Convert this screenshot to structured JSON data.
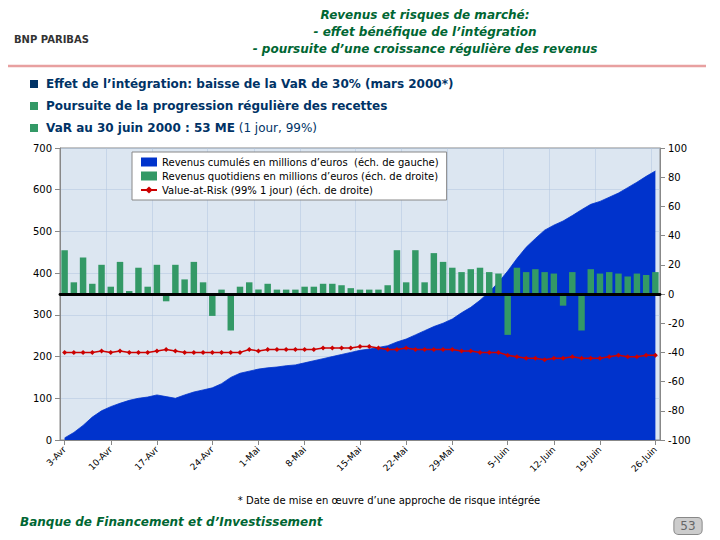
{
  "chart_data": {
    "type": "combo",
    "title": "Revenus et risques de marché:\n- effet bénéfique de l’intégration\n- poursuite d’une croissance régulière des revenus",
    "annotations": [
      "BNP PARIBAS",
      "Effet de l’intégration: baisse de la VaR de 30% (mars 2000*)",
      "Poursuite de la progression régulière des recettes",
      "VaR au 30 juin 2000 : 53 ME",
      "(1 jour, 99%)",
      "* Date de mise en œuvre d’une approche de risque intégrée",
      "Banque de Financement et d’Investissement",
      "53"
    ],
    "categories": [
      "3-Avr",
      null,
      null,
      null,
      null,
      "10-Avr",
      null,
      null,
      null,
      null,
      "17-Avr",
      null,
      null,
      null,
      null,
      null,
      "24-Avr",
      null,
      null,
      null,
      null,
      "1-Mai",
      null,
      null,
      null,
      null,
      "8-Mai",
      null,
      null,
      null,
      null,
      null,
      "15-Mai",
      null,
      null,
      null,
      null,
      "22-Mai",
      null,
      null,
      null,
      null,
      "29-Mai",
      null,
      null,
      null,
      null,
      null,
      "5-Juin",
      null,
      null,
      null,
      null,
      "12-Juin",
      null,
      null,
      null,
      null,
      "19-Juin",
      null,
      null,
      null,
      null,
      null,
      "26-Juin"
    ],
    "series": [
      {
        "name": "Revenus cumulés en millions d’euros  (éch. de gauche)",
        "type": "area",
        "color": "#0033cc",
        "values": [
          5,
          18,
          35,
          55,
          70,
          80,
          88,
          95,
          100,
          103,
          108,
          104,
          100,
          108,
          115,
          120,
          125,
          135,
          150,
          160,
          165,
          170,
          173,
          175,
          178,
          180,
          185,
          190,
          195,
          200,
          205,
          210,
          215,
          218,
          222,
          226,
          235,
          242,
          252,
          262,
          272,
          280,
          290,
          305,
          318,
          335,
          355,
          378,
          405,
          435,
          462,
          483,
          503,
          515,
          525,
          538,
          552,
          565,
          572,
          582,
          592,
          605,
          618,
          632,
          645
        ]
      },
      {
        "name": "Revenus quotidiens en millions d’euros (éch. de droite)",
        "type": "bar",
        "axis": "y2",
        "color": "#339966",
        "values": [
          30,
          8,
          25,
          7,
          20,
          5,
          22,
          2,
          18,
          5,
          20,
          -5,
          20,
          10,
          22,
          8,
          -15,
          3,
          -25,
          5,
          8,
          3,
          7,
          3,
          3,
          3,
          5,
          5,
          7,
          7,
          6,
          4,
          3,
          3,
          3,
          6,
          30,
          8,
          30,
          8,
          28,
          22,
          18,
          15,
          17,
          18,
          15,
          14,
          -28,
          18,
          15,
          17,
          15,
          14,
          -8,
          15,
          -25,
          17,
          14,
          15,
          14,
          12,
          14,
          13,
          15
        ]
      },
      {
        "name": "Value-at-Risk (99% 1 jour) (éch. de droite)",
        "type": "line",
        "axis": "y2",
        "color": "#cc0000",
        "marker": "diamond",
        "values": [
          -40,
          -40,
          -40,
          -40,
          -39,
          -40,
          -39,
          -40,
          -40,
          -40,
          -39,
          -38,
          -39,
          -40,
          -40,
          -40,
          -40,
          -40,
          -40,
          -40,
          -38,
          -39,
          -38,
          -38,
          -38,
          -38,
          -38,
          -38,
          -37,
          -37,
          -37,
          -37,
          -36,
          -36,
          -37,
          -38,
          -38,
          -37,
          -38,
          -38,
          -38,
          -38,
          -38,
          -39,
          -39,
          -40,
          -40,
          -40,
          -42,
          -43,
          -44,
          -44,
          -45,
          -44,
          -44,
          -43,
          -44,
          -44,
          -44,
          -43,
          -42,
          -43,
          -43,
          -42,
          -42
        ]
      }
    ],
    "ylim": [
      0,
      700
    ],
    "yticks": [
      0,
      100,
      200,
      300,
      400,
      500,
      600,
      700
    ],
    "y2lim": [
      -100,
      100
    ],
    "y2ticks": [
      -100,
      -80,
      -60,
      -40,
      -20,
      0,
      20,
      40,
      60,
      80,
      100
    ],
    "grid": true,
    "legend": "upper left"
  }
}
